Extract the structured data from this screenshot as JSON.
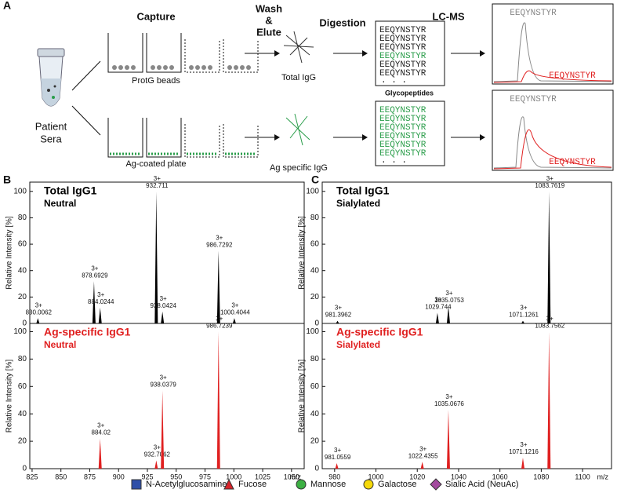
{
  "panel_a": {
    "letter": "A",
    "capture": "Capture",
    "wash_elute": [
      "Wash",
      "&",
      "Elute"
    ],
    "digestion": "Digestion",
    "lcms": "LC-MS",
    "patient_sera": [
      "Patient",
      "Sera"
    ],
    "protg": "ProtG beads",
    "ag_plate": "Ag-coated plate",
    "total_igg": "Total IgG",
    "ag_igg": "Ag specific IgG",
    "glycopeptides": "Glycopeptides",
    "peptides_total": {
      "lines": [
        "EEQYNSTYR",
        "EEQYNSTYR",
        "EEQYNSTYR",
        "EEQYNSTYR",
        "EEQYNSTYR",
        "EEQYNSTYR"
      ],
      "line_colors": [
        "#222",
        "#222",
        "#222",
        "#2a9d4a",
        "#222",
        "#222"
      ],
      "ellipsis": ". . ."
    },
    "peptides_ag": {
      "lines": [
        "EEQYNSTYR",
        "EEQYNSTYR",
        "EEQYNSTYR",
        "EEQYNSTYR",
        "EEQYNSTYR",
        "EEQYNSTYR"
      ],
      "line_colors": [
        "#2a9d4a",
        "#2a9d4a",
        "#2a9d4a",
        "#2a9d4a",
        "#2a9d4a",
        "#2a9d4a"
      ],
      "ellipsis": ". . ."
    },
    "chrom_top": {
      "gray_label": "EEQYNSTYR",
      "red_label": "EEQYNSTYR"
    },
    "chrom_bottom": {
      "gray_label": "EEQYNSTYR",
      "red_label": "EEQYNSTYR"
    }
  },
  "panel_b_letter": "B",
  "panel_c_letter": "C",
  "chart_data": [
    {
      "type": "spectrum",
      "title": "Total IgG1",
      "subtitle": "Neutral",
      "title_color": "#000",
      "color": "#000",
      "ylabel": "Relative Intensity [%]",
      "x": [
        830.0062,
        878.6929,
        884.0244,
        932.711,
        938.0424,
        986.7292,
        1000.4044
      ],
      "values": [
        4,
        32,
        12,
        100,
        9,
        55,
        4
      ],
      "charges": [
        "3+",
        "3+",
        "3+",
        "3+",
        "3+",
        "3+",
        "3+"
      ],
      "xlim": [
        823,
        1061
      ],
      "ylim": [
        0,
        107
      ],
      "yticks": [
        0,
        20,
        40,
        60,
        80,
        100
      ]
    },
    {
      "type": "spectrum",
      "title": "Ag-specific IgG1",
      "subtitle": "Neutral",
      "title_color": "#e02020",
      "color": "#e02020",
      "ylabel": "Relative Intensity [%]",
      "x": [
        884.02,
        932.7062,
        938.0379,
        986.7239
      ],
      "values": [
        22,
        6,
        57,
        100
      ],
      "charges": [
        "3+",
        "3+",
        "3+",
        "3+"
      ],
      "xlim": [
        823,
        1061
      ],
      "ylim": [
        0,
        106
      ],
      "yticks": [
        0,
        20,
        40,
        60,
        80,
        100
      ],
      "xticks": [
        825,
        850,
        875,
        900,
        925,
        950,
        975,
        1000,
        1025,
        1050
      ],
      "xlabel": "m/z"
    },
    {
      "type": "spectrum",
      "title": "Total IgG1",
      "subtitle": "Sialylated",
      "title_color": "#000",
      "color": "#000",
      "ylabel": "Relative Intensity [%]",
      "x": [
        981.3962,
        1029.744,
        1035.0753,
        1071.1261,
        1083.7619
      ],
      "values": [
        2,
        8,
        13,
        2,
        100
      ],
      "charges": [
        "3+",
        "3+",
        "3+",
        "3+",
        "3+"
      ],
      "xlim": [
        974,
        1114
      ],
      "ylim": [
        0,
        107
      ],
      "yticks": [
        0,
        20,
        40,
        60,
        80,
        100
      ]
    },
    {
      "type": "spectrum",
      "title": "Ag-specific IgG1",
      "subtitle": "Sialylated",
      "title_color": "#e02020",
      "color": "#e02020",
      "ylabel": "Relative Intensity [%]",
      "x": [
        981.0559,
        1022.4355,
        1035.0676,
        1071.1216,
        1083.7562
      ],
      "values": [
        4,
        5,
        43,
        8,
        100
      ],
      "charges": [
        "3+",
        "3+",
        "3+",
        "3+",
        "3+"
      ],
      "xlim": [
        974,
        1114
      ],
      "ylim": [
        0,
        106
      ],
      "yticks": [
        0,
        20,
        40,
        60,
        80,
        100
      ],
      "xticks": [
        980,
        1000,
        1020,
        1040,
        1060,
        1080,
        1100
      ],
      "xlabel": "m/z"
    }
  ],
  "legend": [
    {
      "label": "N-Acetylglucosamine",
      "color": "#2f4fa8",
      "shape": "square"
    },
    {
      "label": "Fucose",
      "color": "#d8232a",
      "shape": "triangle"
    },
    {
      "label": "Mannose",
      "color": "#3cb043",
      "shape": "circle"
    },
    {
      "label": "Galactose",
      "color": "#f5d90a",
      "shape": "circle"
    },
    {
      "label": "Sialic Acid (NeuAc)",
      "color": "#a34a9e",
      "shape": "diamond"
    }
  ]
}
